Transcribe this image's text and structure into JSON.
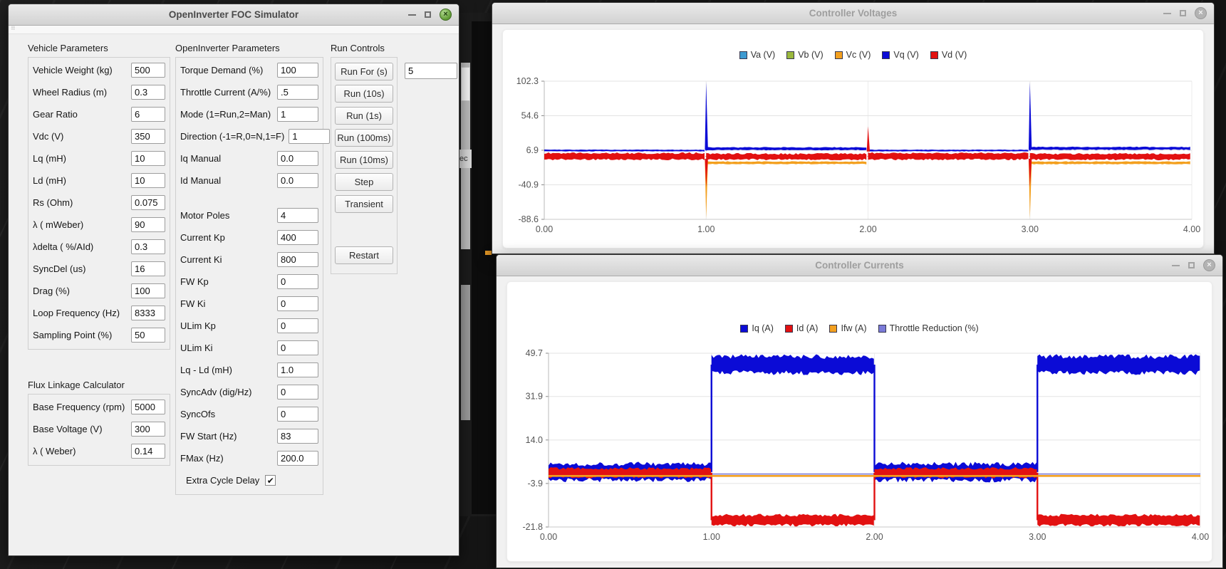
{
  "windows": {
    "simulator": {
      "title": "OpenInverter FOC Simulator",
      "groups": {
        "vehicle": {
          "label": "Vehicle Parameters",
          "fields": [
            {
              "label": "Vehicle Weight (kg)",
              "value": "500"
            },
            {
              "label": "Wheel Radius (m)",
              "value": "0.3"
            },
            {
              "label": "Gear Ratio",
              "value": "6"
            },
            {
              "label": "Vdc (V)",
              "value": "350"
            },
            {
              "label": "Lq (mH)",
              "value": "10"
            },
            {
              "label": "Ld (mH)",
              "value": "10"
            },
            {
              "label": "Rs (Ohm)",
              "value": "0.075"
            },
            {
              "label": "λ ( mWeber)",
              "value": "90"
            },
            {
              "label": "λdelta ( %/AId)",
              "value": "0.3"
            },
            {
              "label": "SyncDel (us)",
              "value": "16"
            },
            {
              "label": "Drag (%)",
              "value": "100"
            },
            {
              "label": "Loop Frequency (Hz)",
              "value": "8333"
            },
            {
              "label": "Sampling Point (%)",
              "value": "50"
            }
          ]
        },
        "flux": {
          "label": "Flux Linkage Calculator",
          "fields": [
            {
              "label": "Base Frequency (rpm)",
              "value": "5000"
            },
            {
              "label": "Base Voltage (V)",
              "value": "300"
            },
            {
              "label": "λ ( Weber)",
              "value": "0.14"
            }
          ]
        },
        "openinverter": {
          "label": "OpenInverter Parameters",
          "fields": [
            {
              "label": "Torque Demand (%)",
              "value": "100"
            },
            {
              "label": "Throttle Current (A/%)",
              "value": ".5"
            },
            {
              "label": "Mode (1=Run,2=Man)",
              "value": "1"
            },
            {
              "label": "Direction (-1=R,0=N,1=F)",
              "value": "1"
            },
            {
              "label": "Iq Manual",
              "value": "0.0"
            },
            {
              "label": "Id Manual",
              "value": "0.0"
            },
            {
              "label": "Motor Poles",
              "value": "4",
              "spacer_before": true
            },
            {
              "label": "Current Kp",
              "value": "400"
            },
            {
              "label": "Current Ki",
              "value": "800"
            },
            {
              "label": "FW Kp",
              "value": "0"
            },
            {
              "label": "FW Ki",
              "value": "0"
            },
            {
              "label": "ULim Kp",
              "value": "0"
            },
            {
              "label": "ULim Ki",
              "value": "0"
            },
            {
              "label": "Lq - Ld (mH)",
              "value": "1.0"
            },
            {
              "label": "SyncAdv (dig/Hz)",
              "value": "0"
            },
            {
              "label": "SyncOfs",
              "value": "0"
            },
            {
              "label": "FW Start (Hz)",
              "value": "83"
            },
            {
              "label": "FMax (Hz)",
              "value": "200.0"
            }
          ],
          "checkbox": {
            "label": "Extra Cycle Delay",
            "checked": true,
            "check_glyph": "✔"
          }
        },
        "run": {
          "label": "Run Controls",
          "run_for_button": "Run For (s)",
          "run_for_value": "5",
          "buttons": [
            "Run (10s)",
            "Run (1s)",
            "Run (100ms)",
            "Run (10ms)",
            "Step",
            "Transient"
          ],
          "restart_button": "Restart"
        }
      }
    },
    "voltages": {
      "title": "Controller Voltages"
    },
    "currents": {
      "title": "Controller Currents"
    }
  },
  "background_fragment": {
    "visible_text": "ec"
  },
  "window_button_glyphs": {
    "close": "×"
  },
  "colors": {
    "blue": "#0b0bd6",
    "red": "#e21111",
    "orange": "#f3a01f",
    "light_blue": "#3d9ad1",
    "olive": "#9ab83d",
    "slate": "#7b7bd8",
    "grid": "#e3e3e3",
    "tick_text": "#555555"
  },
  "chart_data": [
    {
      "type": "line",
      "title": "Controller Voltages",
      "legend_position": "top",
      "grid": true,
      "xlim": [
        0,
        4
      ],
      "ylim": [
        -88.6,
        102.3
      ],
      "xticks": [
        "0.00",
        "1.00",
        "2.00",
        "3.00",
        "4.00"
      ],
      "yticks": [
        "102.3",
        "54.6",
        "6.9",
        "-40.9",
        "-88.6"
      ],
      "series": [
        {
          "name": "Va (V)",
          "color": "#3d9ad1",
          "z": 0,
          "bands": [],
          "spikes": [],
          "flat_lines": []
        },
        {
          "name": "Vb (V)",
          "color": "#9ab83d",
          "z": 0,
          "bands": [],
          "spikes": [],
          "flat_lines": []
        },
        {
          "name": "Vc (V)",
          "color": "#f3a01f",
          "z": 1,
          "bands": [
            {
              "x0": 1,
              "x1": 2,
              "center": -10.5,
              "half": 2.2
            },
            {
              "x0": 3,
              "x1": 4,
              "center": -10.5,
              "half": 2.2
            }
          ],
          "spikes": [
            {
              "x": 1,
              "base": -8,
              "peak": -87
            },
            {
              "x": 3,
              "base": -8,
              "peak": -87
            }
          ],
          "flat_lines": []
        },
        {
          "name": "Vq (V)",
          "color": "#0b0bd6",
          "z": 2,
          "bands": [
            {
              "x0": 0,
              "x1": 1,
              "center": 6.5,
              "half": 1.4
            },
            {
              "x0": 1,
              "x1": 2,
              "center": 9.0,
              "half": 2.4
            },
            {
              "x0": 2,
              "x1": 3,
              "center": 6.5,
              "half": 1.4
            },
            {
              "x0": 3,
              "x1": 4,
              "center": 9.5,
              "half": 2.4
            }
          ],
          "spikes": [
            {
              "x": 1,
              "base": 8,
              "peak": 101
            },
            {
              "x": 3,
              "base": 8,
              "peak": 101
            }
          ],
          "flat_lines": []
        },
        {
          "name": "Vd (V)",
          "color": "#e21111",
          "z": 3,
          "bands": [
            {
              "x0": 0,
              "x1": 1,
              "center": -1.5,
              "half": 5.5
            },
            {
              "x0": 1,
              "x1": 2,
              "center": -2.0,
              "half": 5.0
            },
            {
              "x0": 2,
              "x1": 3,
              "center": -1.5,
              "half": 5.5
            },
            {
              "x0": 3,
              "x1": 4,
              "center": -2.0,
              "half": 5.0
            }
          ],
          "spikes": [
            {
              "x": 1,
              "base": -5,
              "peak": -44
            },
            {
              "x": 2,
              "base": 5,
              "peak": 40
            },
            {
              "x": 3,
              "base": -5,
              "peak": -44
            }
          ],
          "flat_lines": []
        }
      ]
    },
    {
      "type": "line",
      "title": "Controller Currents",
      "legend_position": "top",
      "grid": true,
      "xlim": [
        0,
        4
      ],
      "ylim": [
        -21.8,
        49.7
      ],
      "xticks": [
        "0.00",
        "1.00",
        "2.00",
        "3.00",
        "4.00"
      ],
      "yticks": [
        "49.7",
        "31.9",
        "14.0",
        "-3.9",
        "-21.8"
      ],
      "series": [
        {
          "name": "Iq (A)",
          "color": "#0b0bd6",
          "z": 1,
          "bands": [
            {
              "x0": 0,
              "x1": 1,
              "center": 0.8,
              "half": 4.3
            },
            {
              "x0": 1,
              "x1": 2,
              "center": 45.0,
              "half": 4.3
            },
            {
              "x0": 2,
              "x1": 3,
              "center": 0.8,
              "half": 4.3
            },
            {
              "x0": 3,
              "x1": 4,
              "center": 45.0,
              "half": 4.3
            }
          ],
          "spikes": [],
          "flat_lines": []
        },
        {
          "name": "Id (A)",
          "color": "#e21111",
          "z": 2,
          "bands": [
            {
              "x0": 0,
              "x1": 1,
              "center": 0.5,
              "half": 2.3
            },
            {
              "x0": 1,
              "x1": 2,
              "center": -19.0,
              "half": 2.6
            },
            {
              "x0": 2,
              "x1": 3,
              "center": 0.5,
              "half": 2.3
            },
            {
              "x0": 3,
              "x1": 4,
              "center": -19.0,
              "half": 2.6
            }
          ],
          "spikes": [],
          "flat_lines": []
        },
        {
          "name": "Ifw (A)",
          "color": "#f3a01f",
          "z": 3,
          "bands": [],
          "spikes": [],
          "flat_lines": [
            {
              "y": -0.8,
              "x0": 0,
              "x1": 4,
              "width": 2.6
            }
          ]
        },
        {
          "name": "Throttle Reduction (%)",
          "color": "#7b7bd8",
          "z": 0,
          "bands": [],
          "spikes": [],
          "flat_lines": [
            {
              "y": 0,
              "x0": 0,
              "x1": 4,
              "width": 1.6
            }
          ]
        }
      ]
    }
  ]
}
